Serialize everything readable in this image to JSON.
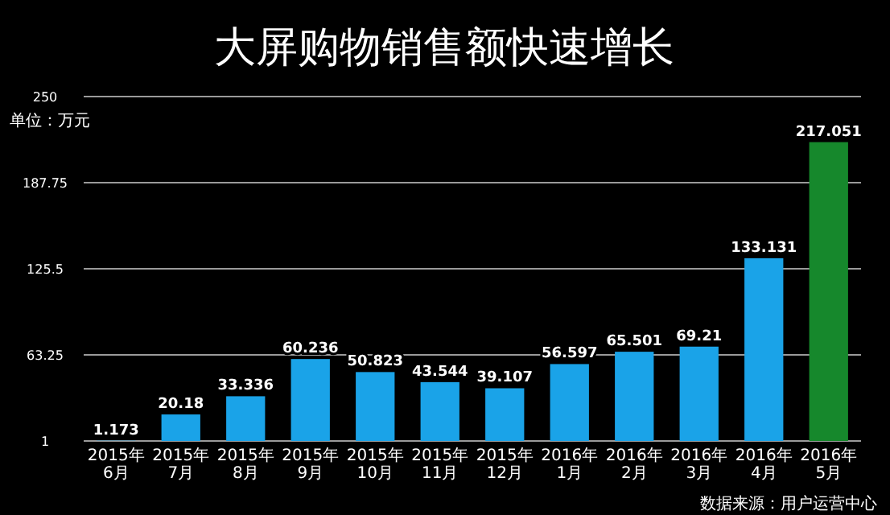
{
  "chart_data": {
    "type": "bar",
    "title": "大屏购物销售额快速增长",
    "ylabel": "单位：万元",
    "categories": [
      "2015年6月",
      "2015年7月",
      "2015年8月",
      "2015年9月",
      "2015年10月",
      "2015年11月",
      "2015年12月",
      "2016年1月",
      "2016年2月",
      "2016年3月",
      "2016年4月",
      "2016年5月"
    ],
    "values": [
      1.173,
      20.18,
      33.336,
      60.236,
      50.823,
      43.544,
      39.107,
      56.597,
      65.501,
      69.21,
      133.131,
      217.051
    ],
    "colors": [
      "#1aa3e8",
      "#1aa3e8",
      "#1aa3e8",
      "#1aa3e8",
      "#1aa3e8",
      "#1aa3e8",
      "#1aa3e8",
      "#1aa3e8",
      "#1aa3e8",
      "#1aa3e8",
      "#1aa3e8",
      "#16882c"
    ],
    "ylim": [
      1,
      250
    ],
    "yticks": [
      1,
      63.25,
      125.5,
      187.75,
      250
    ],
    "grid": "y",
    "data_labels": true,
    "annotations": [
      "数据来源：用户运营中心"
    ]
  }
}
